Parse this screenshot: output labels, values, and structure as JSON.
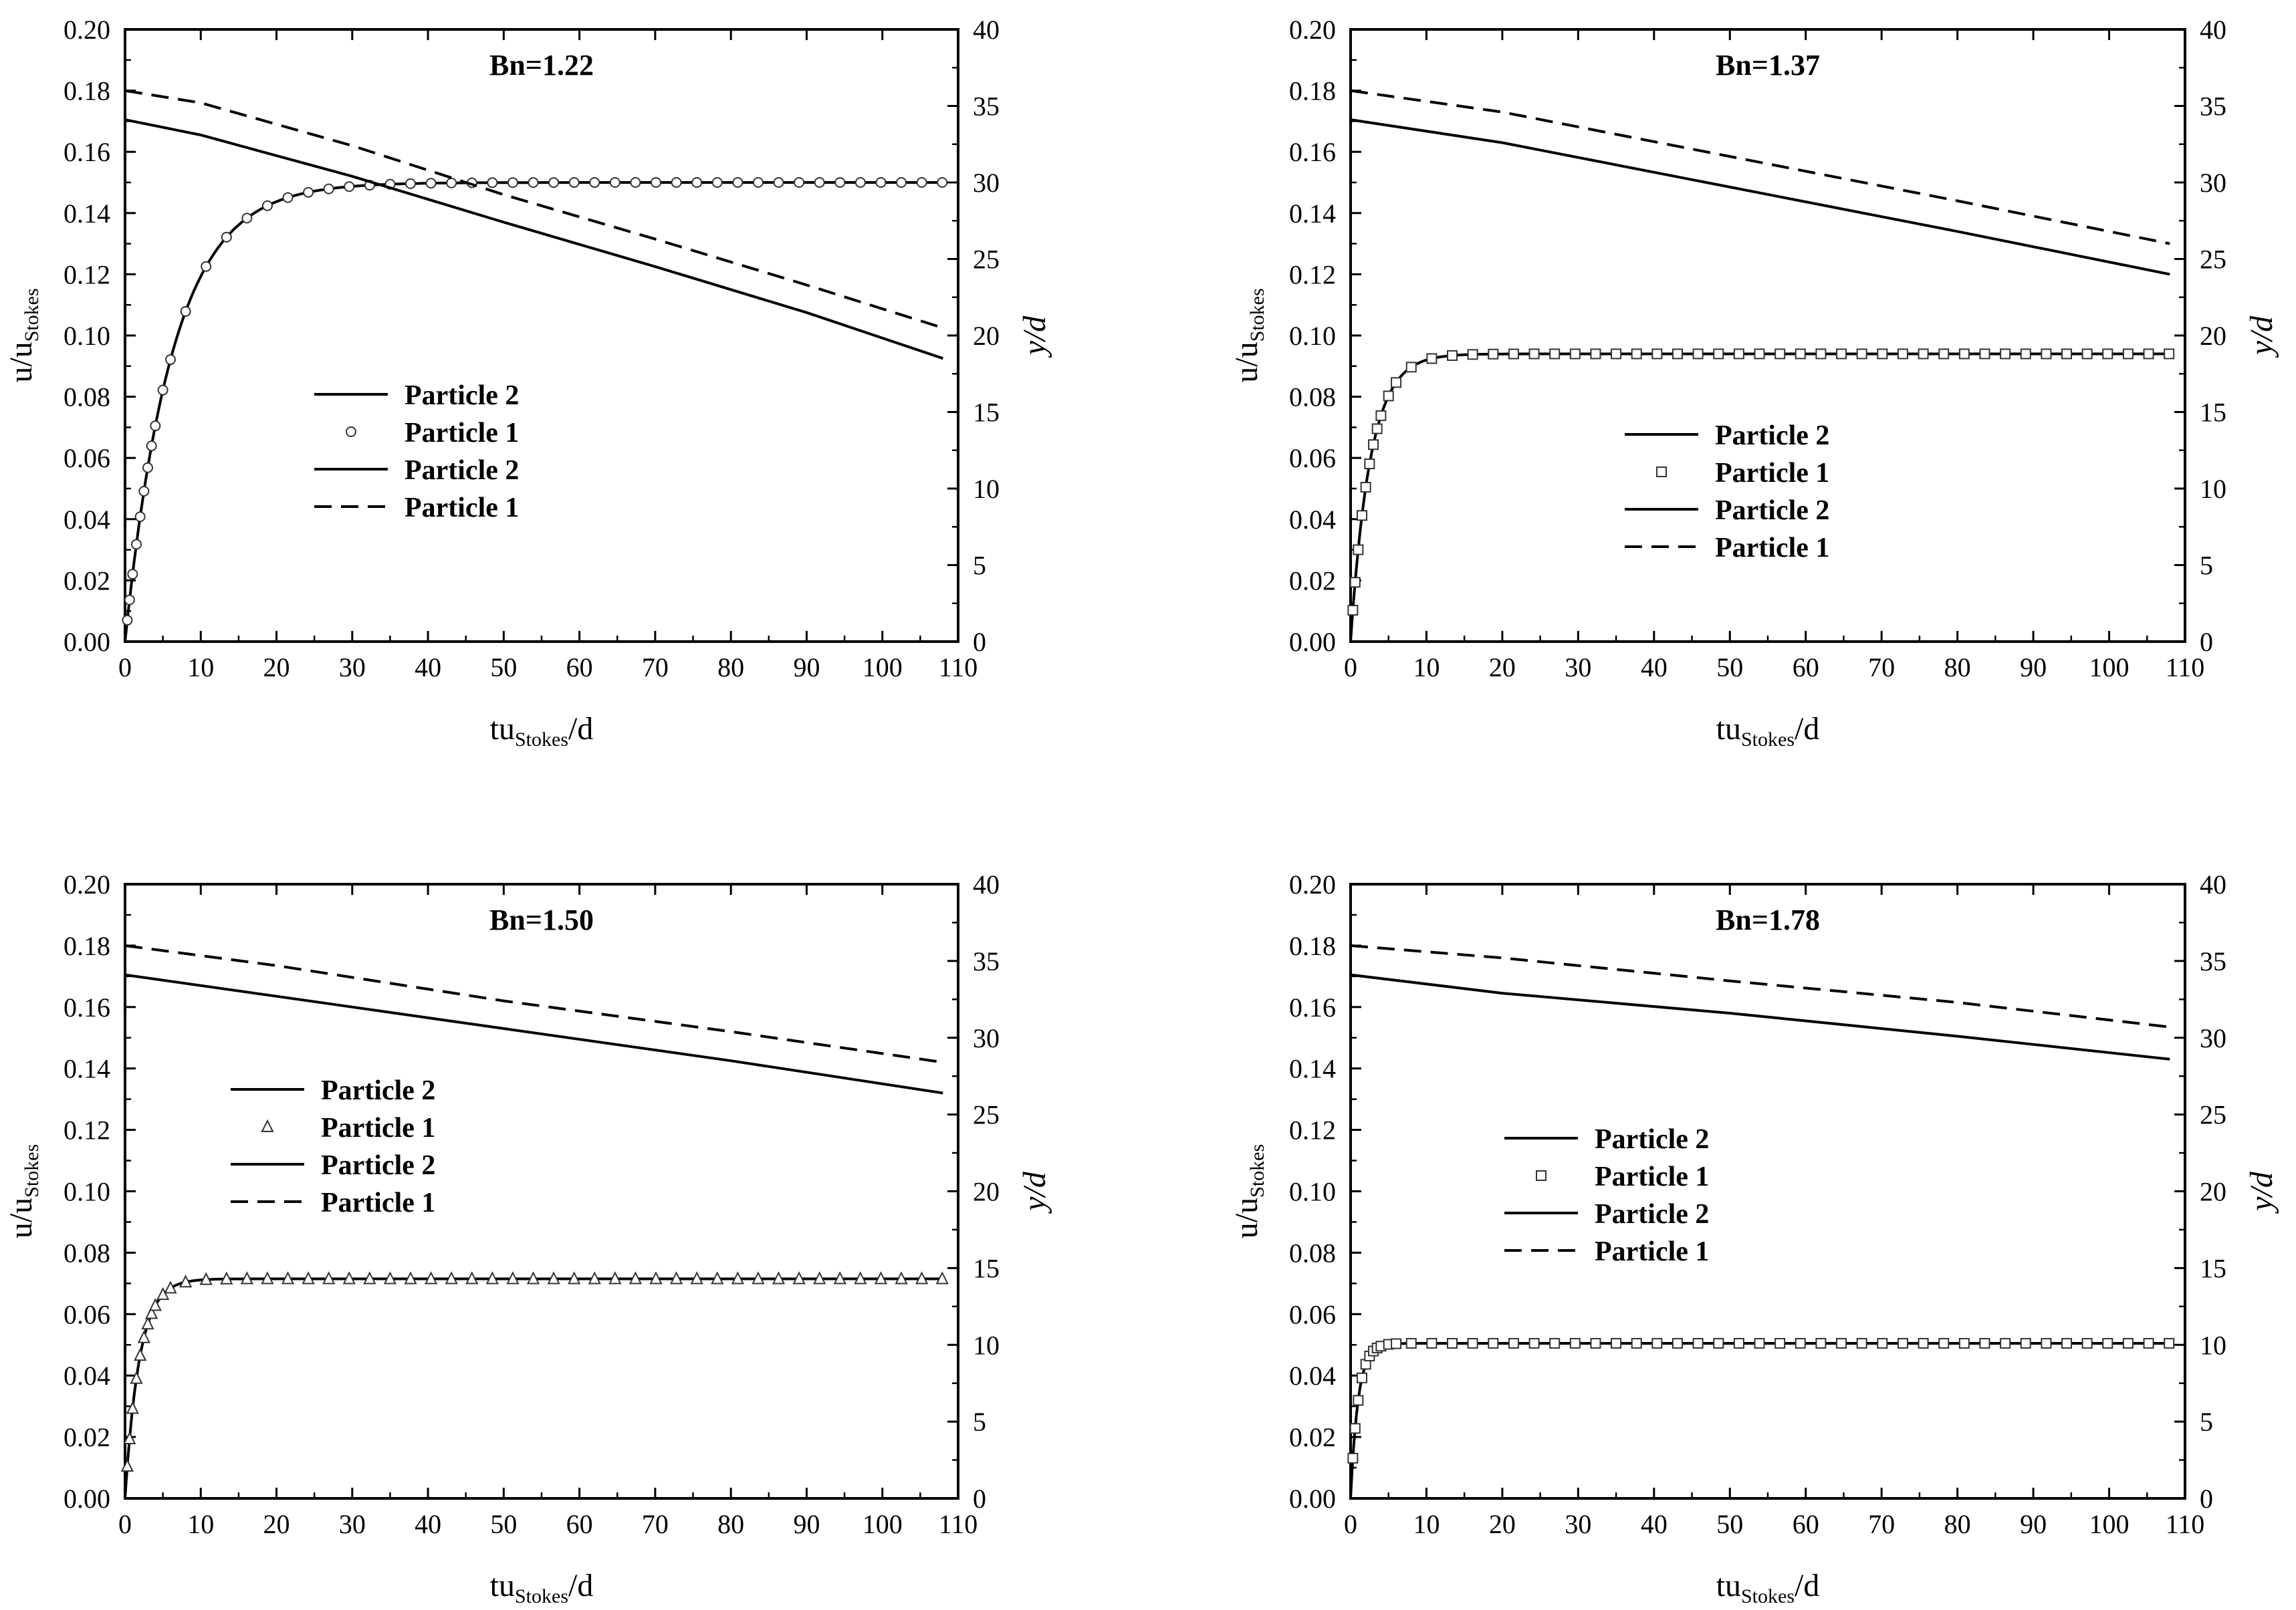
{
  "chart_data": [
    {
      "type": "line",
      "title": "Bn=1.22",
      "xlabel": "tu",
      "xlabel_sub": "Stokes",
      "xlabel_tail": "/d",
      "ylabel": "u/u",
      "ylabel_sub": "Stokes",
      "y2label": "y/d",
      "xlim": [
        0,
        110
      ],
      "ylim": [
        0,
        0.2
      ],
      "y2lim": [
        0,
        40
      ],
      "xticks": [
        "0",
        "10",
        "20",
        "30",
        "40",
        "50",
        "60",
        "70",
        "80",
        "90",
        "100",
        "110"
      ],
      "yticks": [
        "0.00",
        "0.02",
        "0.04",
        "0.06",
        "0.08",
        "0.10",
        "0.12",
        "0.14",
        "0.16",
        "0.18",
        "0.20"
      ],
      "y2ticks": [
        "0",
        "5",
        "10",
        "15",
        "20",
        "25",
        "30",
        "35",
        "40"
      ],
      "legend": {
        "position": "center-left",
        "entries": [
          "Particle 2",
          "Particle 1",
          "Particle 2",
          "Particle 1"
        ]
      },
      "marker": "circle",
      "series": [
        {
          "name": "Particle 2",
          "axis": "left",
          "style": "solid",
          "tau": 6.3,
          "ss": 0.15,
          "x_start": 0,
          "x_end": 108
        },
        {
          "name": "Particle 1",
          "axis": "left",
          "style": "markers",
          "tau": 6.3,
          "ss": 0.15,
          "x_start": 0,
          "x_end": 108
        },
        {
          "name": "Particle 2",
          "axis": "right",
          "style": "solid",
          "x": [
            0,
            10,
            30,
            50,
            70,
            90,
            108
          ],
          "y": [
            34.1,
            33.1,
            30.4,
            27.4,
            24.5,
            21.5,
            18.5
          ]
        },
        {
          "name": "Particle 1",
          "axis": "right",
          "style": "dashed",
          "x": [
            0,
            10,
            30,
            50,
            70,
            90,
            108
          ],
          "y": [
            36.0,
            35.2,
            32.4,
            29.2,
            26.3,
            23.3,
            20.5
          ]
        }
      ]
    },
    {
      "type": "line",
      "title": "Bn=1.37",
      "xlabel": "tu",
      "xlabel_sub": "Stokes",
      "xlabel_tail": "/d",
      "ylabel": "u/u",
      "ylabel_sub": "Stokes",
      "y2label": "y/d",
      "xlim": [
        0,
        110
      ],
      "ylim": [
        0,
        0.2
      ],
      "y2lim": [
        0,
        40
      ],
      "xticks": [
        "0",
        "10",
        "20",
        "30",
        "40",
        "50",
        "60",
        "70",
        "80",
        "90",
        "100",
        "110"
      ],
      "yticks": [
        "0.00",
        "0.02",
        "0.04",
        "0.06",
        "0.08",
        "0.10",
        "0.12",
        "0.14",
        "0.16",
        "0.18",
        "0.20"
      ],
      "y2ticks": [
        "0",
        "5",
        "10",
        "15",
        "20",
        "25",
        "30",
        "35",
        "40"
      ],
      "legend": {
        "position": "center-right",
        "entries": [
          "Particle 2",
          "Particle 1",
          "Particle 2",
          "Particle 1"
        ]
      },
      "marker": "square",
      "series": [
        {
          "name": "Particle 2",
          "axis": "left",
          "style": "solid",
          "tau": 2.6,
          "ss": 0.094,
          "x_start": 0,
          "x_end": 108
        },
        {
          "name": "Particle 1",
          "axis": "left",
          "style": "markers",
          "tau": 2.6,
          "ss": 0.094,
          "x_start": 0,
          "x_end": 108
        },
        {
          "name": "Particle 2",
          "axis": "right",
          "style": "solid",
          "x": [
            0,
            20,
            50,
            80,
            108
          ],
          "y": [
            34.1,
            32.6,
            29.7,
            26.8,
            24.0
          ]
        },
        {
          "name": "Particle 1",
          "axis": "right",
          "style": "dashed",
          "x": [
            0,
            20,
            50,
            80,
            108
          ],
          "y": [
            36.0,
            34.6,
            31.7,
            28.8,
            26.0
          ]
        }
      ]
    },
    {
      "type": "line",
      "title": "Bn=1.50",
      "xlabel": "tu",
      "xlabel_sub": "Stokes",
      "xlabel_tail": "/d",
      "ylabel": "u/u",
      "ylabel_sub": "Stokes",
      "y2label": "y/d",
      "xlim": [
        0,
        110
      ],
      "ylim": [
        0,
        0.2
      ],
      "y2lim": [
        0,
        40
      ],
      "xticks": [
        "0",
        "10",
        "20",
        "30",
        "40",
        "50",
        "60",
        "70",
        "80",
        "90",
        "100",
        "110"
      ],
      "yticks": [
        "0.00",
        "0.02",
        "0.04",
        "0.06",
        "0.08",
        "0.10",
        "0.12",
        "0.14",
        "0.16",
        "0.18",
        "0.20"
      ],
      "y2ticks": [
        "0",
        "5",
        "10",
        "15",
        "20",
        "25",
        "30",
        "35",
        "40"
      ],
      "legend": {
        "position": "upper-left",
        "entries": [
          "Particle 2",
          "Particle 1",
          "Particle 2",
          "Particle 1"
        ]
      },
      "marker": "triangle",
      "series": [
        {
          "name": "Particle 2",
          "axis": "left",
          "style": "solid",
          "tau": 1.9,
          "ss": 0.0715,
          "x_start": 0,
          "x_end": 108
        },
        {
          "name": "Particle 1",
          "axis": "left",
          "style": "markers",
          "tau": 1.9,
          "ss": 0.0715,
          "x_start": 0,
          "x_end": 108
        },
        {
          "name": "Particle 2",
          "axis": "right",
          "style": "solid",
          "x": [
            0,
            20,
            50,
            80,
            108
          ],
          "y": [
            34.1,
            32.7,
            30.6,
            28.5,
            26.4
          ]
        },
        {
          "name": "Particle 1",
          "axis": "right",
          "style": "dashed",
          "x": [
            0,
            20,
            50,
            80,
            108
          ],
          "y": [
            36.0,
            34.7,
            32.4,
            30.4,
            28.4
          ]
        }
      ]
    },
    {
      "type": "line",
      "title": "Bn=1.78",
      "xlabel": "tu",
      "xlabel_sub": "Stokes",
      "xlabel_tail": "/d",
      "ylabel": "u/u",
      "ylabel_sub": "Stokes",
      "y2label": "y/d",
      "xlim": [
        0,
        110
      ],
      "ylim": [
        0,
        0.2
      ],
      "y2lim": [
        0,
        40
      ],
      "xticks": [
        "0",
        "10",
        "20",
        "30",
        "40",
        "50",
        "60",
        "70",
        "80",
        "90",
        "100",
        "110"
      ],
      "yticks": [
        "0.00",
        "0.02",
        "0.04",
        "0.06",
        "0.08",
        "0.10",
        "0.12",
        "0.14",
        "0.16",
        "0.18",
        "0.20"
      ],
      "y2ticks": [
        "0",
        "5",
        "10",
        "15",
        "20",
        "25",
        "30",
        "35",
        "40"
      ],
      "legend": {
        "position": "center-left",
        "entries": [
          "Particle 2",
          "Particle 1",
          "Particle 2",
          "Particle 1"
        ]
      },
      "marker": "square",
      "series": [
        {
          "name": "Particle 2",
          "axis": "left",
          "style": "solid",
          "tau": 1.0,
          "ss": 0.0505,
          "x_start": 0,
          "x_end": 108
        },
        {
          "name": "Particle 1",
          "axis": "left",
          "style": "markers",
          "tau": 1.0,
          "ss": 0.0505,
          "x_start": 0,
          "x_end": 108
        },
        {
          "name": "Particle 2",
          "axis": "right",
          "style": "solid",
          "x": [
            0,
            20,
            50,
            80,
            108
          ],
          "y": [
            34.1,
            32.9,
            31.6,
            30.1,
            28.6
          ]
        },
        {
          "name": "Particle 1",
          "axis": "right",
          "style": "dashed",
          "x": [
            0,
            20,
            50,
            80,
            108
          ],
          "y": [
            36.0,
            35.2,
            33.7,
            32.3,
            30.7
          ]
        }
      ]
    }
  ]
}
